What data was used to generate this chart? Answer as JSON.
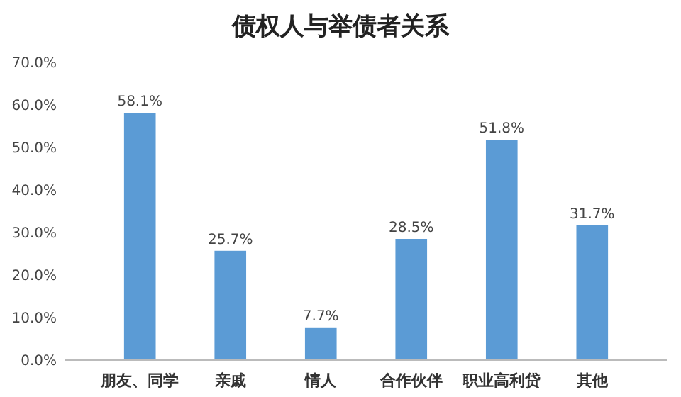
{
  "chart_data": {
    "type": "bar",
    "title": "债权人与举债者关系",
    "categories": [
      "朋友、同学",
      "亲戚",
      "情人",
      "合作伙伴",
      "职业高利贷",
      "其他"
    ],
    "values": [
      58.1,
      25.7,
      7.7,
      28.5,
      51.8,
      31.7
    ],
    "value_labels": [
      "58.1%",
      "25.7%",
      "7.7%",
      "28.5%",
      "51.8%",
      "31.7%"
    ],
    "color": "#5b9bd5",
    "ylim": [
      0,
      70
    ],
    "yticks": [
      {
        "value": 0,
        "label": "0.0%"
      },
      {
        "value": 10,
        "label": "10.0%"
      },
      {
        "value": 20,
        "label": "20.0%"
      },
      {
        "value": 30,
        "label": "30.0%"
      },
      {
        "value": 40,
        "label": "40.0%"
      },
      {
        "value": 50,
        "label": "50.0%"
      },
      {
        "value": 60,
        "label": "60.0%"
      },
      {
        "value": 70,
        "label": "70.0%"
      }
    ],
    "grid": false
  }
}
